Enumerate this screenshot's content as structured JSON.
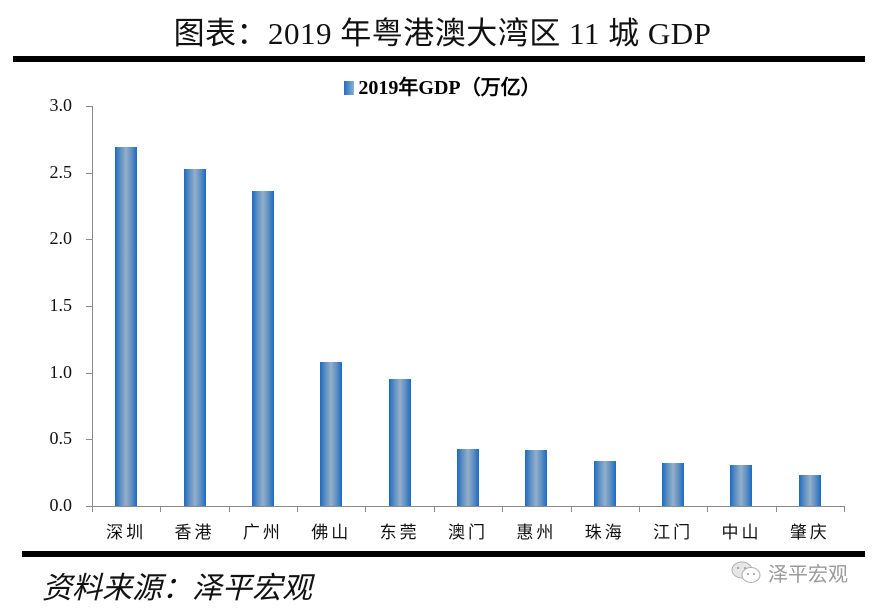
{
  "header": {
    "title": "图表：2019 年粤港澳大湾区 11 城 GDP"
  },
  "footer": {
    "source": "资料来源：泽平宏观",
    "watermark": "泽平宏观",
    "watermark_icon": "wechat-icon"
  },
  "colors": {
    "bar_edge": "#1b6ac4",
    "bar_center": "#94afc9",
    "axis": "#8a8a8a",
    "rule": "#000000"
  },
  "chart_data": {
    "type": "bar",
    "title": "图表：2019 年粤港澳大湾区 11 城 GDP",
    "legend": [
      "2019年GDP（万亿）"
    ],
    "legend_position": "top",
    "categories": [
      "深圳",
      "香港",
      "广州",
      "佛山",
      "东莞",
      "澳门",
      "惠州",
      "珠海",
      "江门",
      "中山",
      "肇庆"
    ],
    "series": [
      {
        "name": "2019年GDP（万亿）",
        "values": [
          2.69,
          2.53,
          2.36,
          1.08,
          0.95,
          0.43,
          0.42,
          0.34,
          0.32,
          0.31,
          0.23
        ]
      }
    ],
    "xlabel": "",
    "ylabel": "",
    "ylim": [
      0,
      3.0
    ],
    "yticks": [
      "0.0",
      "0.5",
      "1.0",
      "1.5",
      "2.0",
      "2.5",
      "3.0"
    ],
    "grid": false
  }
}
